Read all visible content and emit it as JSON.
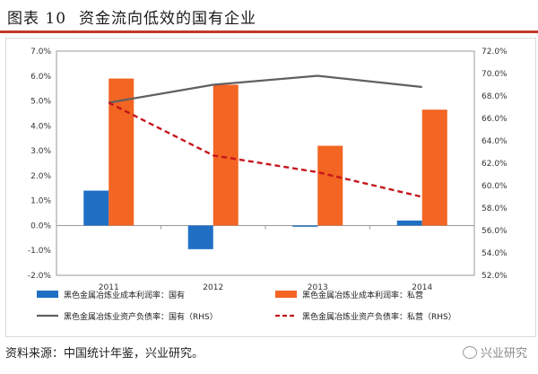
{
  "header": {
    "figure_no": "图表 10",
    "title": "资金流向低效的国有企业"
  },
  "footer": {
    "source": "资料来源：中国统计年鉴，兴业研究。",
    "watermark": "兴业研究"
  },
  "colors": {
    "blue": "#1f6fc5",
    "orange": "#f26522",
    "gray": "#606060",
    "red": "#c4161c"
  },
  "chart_data": {
    "type": "bar",
    "categories": [
      "2011",
      "2012",
      "2013",
      "2014"
    ],
    "series": [
      {
        "name": "黑色金属冶炼业成本利润率：国有",
        "kind": "bar",
        "axis": "left",
        "color": "#1f6fc5",
        "values": [
          1.4,
          -0.95,
          -0.05,
          0.2
        ]
      },
      {
        "name": "黑色金属冶炼业成本利润率：私营",
        "kind": "bar",
        "axis": "left",
        "color": "#f26522",
        "values": [
          5.9,
          5.65,
          3.2,
          4.65
        ]
      },
      {
        "name": "黑色金属冶炼业资产负债率：国有（RHS）",
        "kind": "line",
        "axis": "right",
        "color": "#606060",
        "values": [
          67.4,
          69.0,
          69.8,
          68.8
        ]
      },
      {
        "name": "黑色金属冶炼业资产负债率：私营（RHS）",
        "kind": "dashed",
        "axis": "right",
        "color": "#c4161c",
        "values": [
          67.4,
          62.7,
          61.2,
          59.0
        ]
      }
    ],
    "ylim_left": [
      -2.0,
      7.0
    ],
    "yticks_left": [
      "7.0%",
      "6.0%",
      "5.0%",
      "4.0%",
      "3.0%",
      "2.0%",
      "1.0%",
      "0.0%",
      "-1.0%",
      "-2.0%"
    ],
    "ylim_right": [
      52.0,
      72.0
    ],
    "yticks_right": [
      "72.0%",
      "70.0%",
      "68.0%",
      "66.0%",
      "64.0%",
      "62.0%",
      "60.0%",
      "58.0%",
      "56.0%",
      "54.0%",
      "52.0%"
    ],
    "legend_position": "bottom",
    "grid": false
  }
}
